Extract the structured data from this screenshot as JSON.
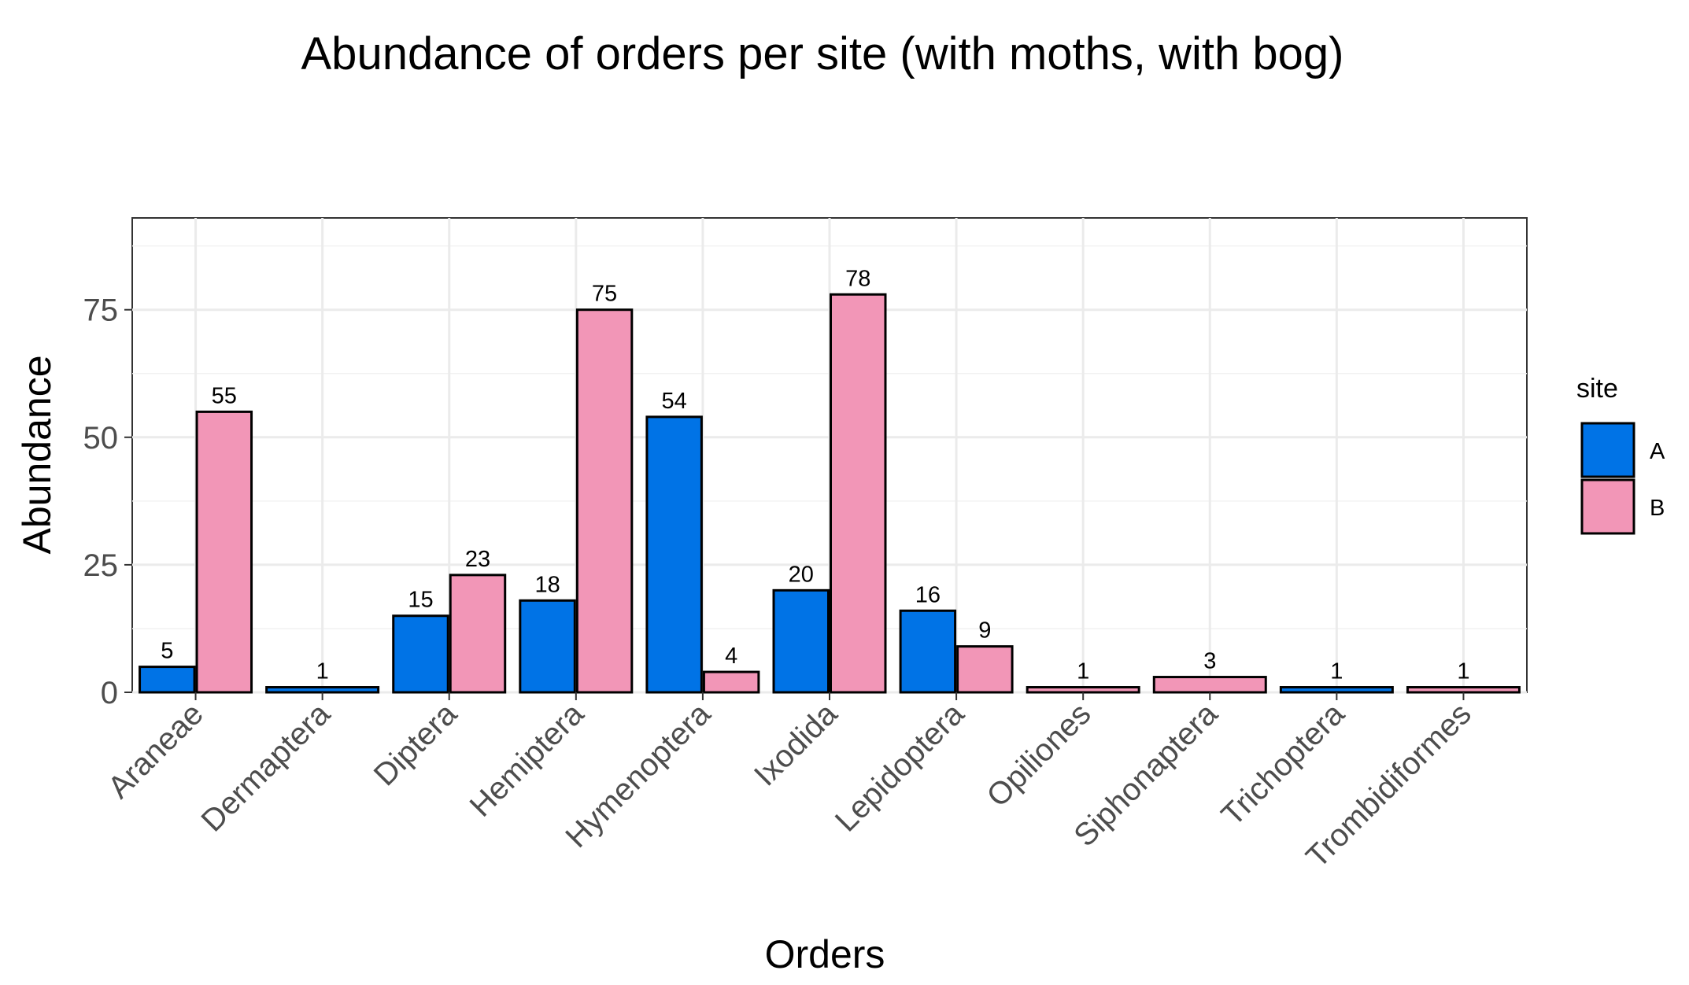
{
  "chart_data": {
    "type": "bar",
    "title": "Abundance of orders per site (with moths, with bog)",
    "xlabel": "Orders",
    "ylabel": "Abundance",
    "ylim": [
      0,
      93
    ],
    "yticks": [
      0,
      25,
      50,
      75
    ],
    "grid": true,
    "legend_title": "site",
    "legend_position": "right",
    "bar_border_color": "#000000",
    "categories": [
      "Araneae",
      "Dermaptera",
      "Diptera",
      "Hemiptera",
      "Hymenoptera",
      "Ixodida",
      "Lepidoptera",
      "Opiliones",
      "Siphonaptera",
      "Trichoptera",
      "Trombidiformes"
    ],
    "series": [
      {
        "name": "A",
        "color": "#0073e6",
        "values": [
          5,
          1,
          15,
          18,
          54,
          20,
          16,
          1,
          0,
          1,
          1
        ]
      },
      {
        "name": "B",
        "color": "#f296b7",
        "values": [
          55,
          1,
          23,
          75,
          4,
          78,
          9,
          1,
          3,
          1,
          1
        ]
      }
    ],
    "bars": [
      {
        "category": "Araneae",
        "series": "A",
        "value": 5,
        "label": "5"
      },
      {
        "category": "Araneae",
        "series": "B",
        "value": 55,
        "label": "55"
      },
      {
        "category": "Dermaptera",
        "series": "A",
        "value": 1,
        "label": "1",
        "full_width": true
      },
      {
        "category": "Diptera",
        "series": "A",
        "value": 15,
        "label": "15"
      },
      {
        "category": "Diptera",
        "series": "B",
        "value": 23,
        "label": "23"
      },
      {
        "category": "Hemiptera",
        "series": "A",
        "value": 18,
        "label": "18"
      },
      {
        "category": "Hemiptera",
        "series": "B",
        "value": 75,
        "label": "75"
      },
      {
        "category": "Hymenoptera",
        "series": "A",
        "value": 54,
        "label": "54"
      },
      {
        "category": "Hymenoptera",
        "series": "B",
        "value": 4,
        "label": "4"
      },
      {
        "category": "Ixodida",
        "series": "A",
        "value": 20,
        "label": "20"
      },
      {
        "category": "Ixodida",
        "series": "B",
        "value": 78,
        "label": "78"
      },
      {
        "category": "Lepidoptera",
        "series": "A",
        "value": 16,
        "label": "16"
      },
      {
        "category": "Lepidoptera",
        "series": "B",
        "value": 9,
        "label": "9"
      },
      {
        "category": "Opiliones",
        "series": "B",
        "value": 1,
        "label": "1",
        "full_width": true
      },
      {
        "category": "Siphonaptera",
        "series": "B",
        "value": 3,
        "label": "3",
        "full_width": true
      },
      {
        "category": "Trichoptera",
        "series": "A",
        "value": 1,
        "label": "1",
        "full_width": true
      },
      {
        "category": "Trombidiformes",
        "series": "B",
        "value": 1,
        "label": "1",
        "full_width": true
      }
    ]
  }
}
